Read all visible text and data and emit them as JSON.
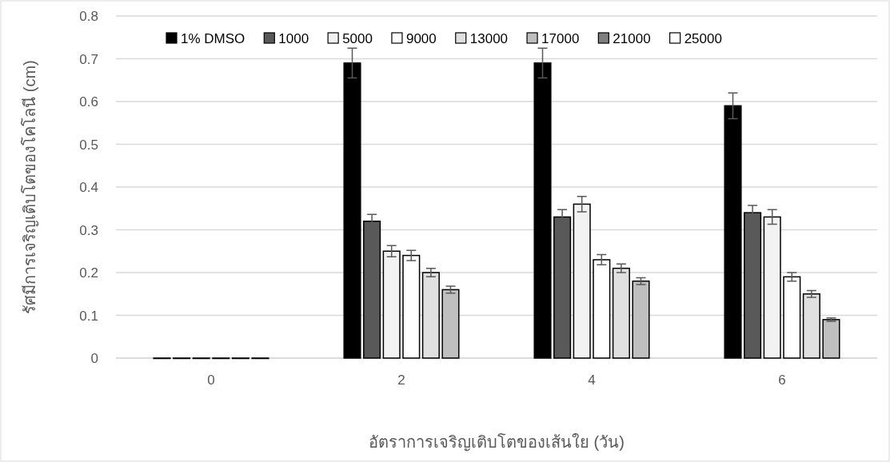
{
  "chart_data": {
    "type": "bar",
    "xlabel": "อัตราการเจริญเติบโตของเส้นใย (วัน)",
    "ylabel": "รัศมีการเจริญเติบโตของโคโลนี (cm)",
    "categories": [
      "0",
      "2",
      "4",
      "6"
    ],
    "ylim": [
      0,
      0.8
    ],
    "yticks": [
      0,
      0.1,
      0.2,
      0.3,
      0.4,
      0.5,
      0.6,
      0.7,
      0.8
    ],
    "grid": "y",
    "legend": "top",
    "series": [
      {
        "name": "1% DMSO",
        "color": "#000000",
        "values": [
          0,
          0.69,
          0.69,
          0.59
        ],
        "errors": [
          null,
          0.035,
          0.035,
          0.03
        ]
      },
      {
        "name": "1000",
        "color": "#595959",
        "values": [
          0,
          0.32,
          0.33,
          0.34
        ],
        "errors": [
          null,
          0.016,
          0.017,
          0.017
        ]
      },
      {
        "name": "5000",
        "color": "#f2f2f2",
        "values": [
          0,
          0.25,
          0.36,
          0.33
        ],
        "errors": [
          null,
          0.013,
          0.018,
          0.017
        ]
      },
      {
        "name": "9000",
        "color": "#ffffff",
        "values": [
          0,
          0.24,
          0.23,
          0.19
        ],
        "errors": [
          null,
          0.012,
          0.012,
          0.01
        ]
      },
      {
        "name": "13000",
        "color": "#e0e0e0",
        "values": [
          0,
          0.2,
          0.21,
          0.15
        ],
        "errors": [
          null,
          0.01,
          0.01,
          0.008
        ]
      },
      {
        "name": "17000",
        "color": "#bfbfbf",
        "values": [
          0,
          0.16,
          0.18,
          0.09
        ],
        "errors": [
          null,
          0.008,
          0.008,
          0.004
        ]
      },
      {
        "name": "21000",
        "color": "#7f7f7f",
        "values": [
          null,
          null,
          null,
          null
        ]
      },
      {
        "name": "25000",
        "color": "#ffffff",
        "values": [
          null,
          null,
          null,
          null
        ]
      }
    ]
  }
}
